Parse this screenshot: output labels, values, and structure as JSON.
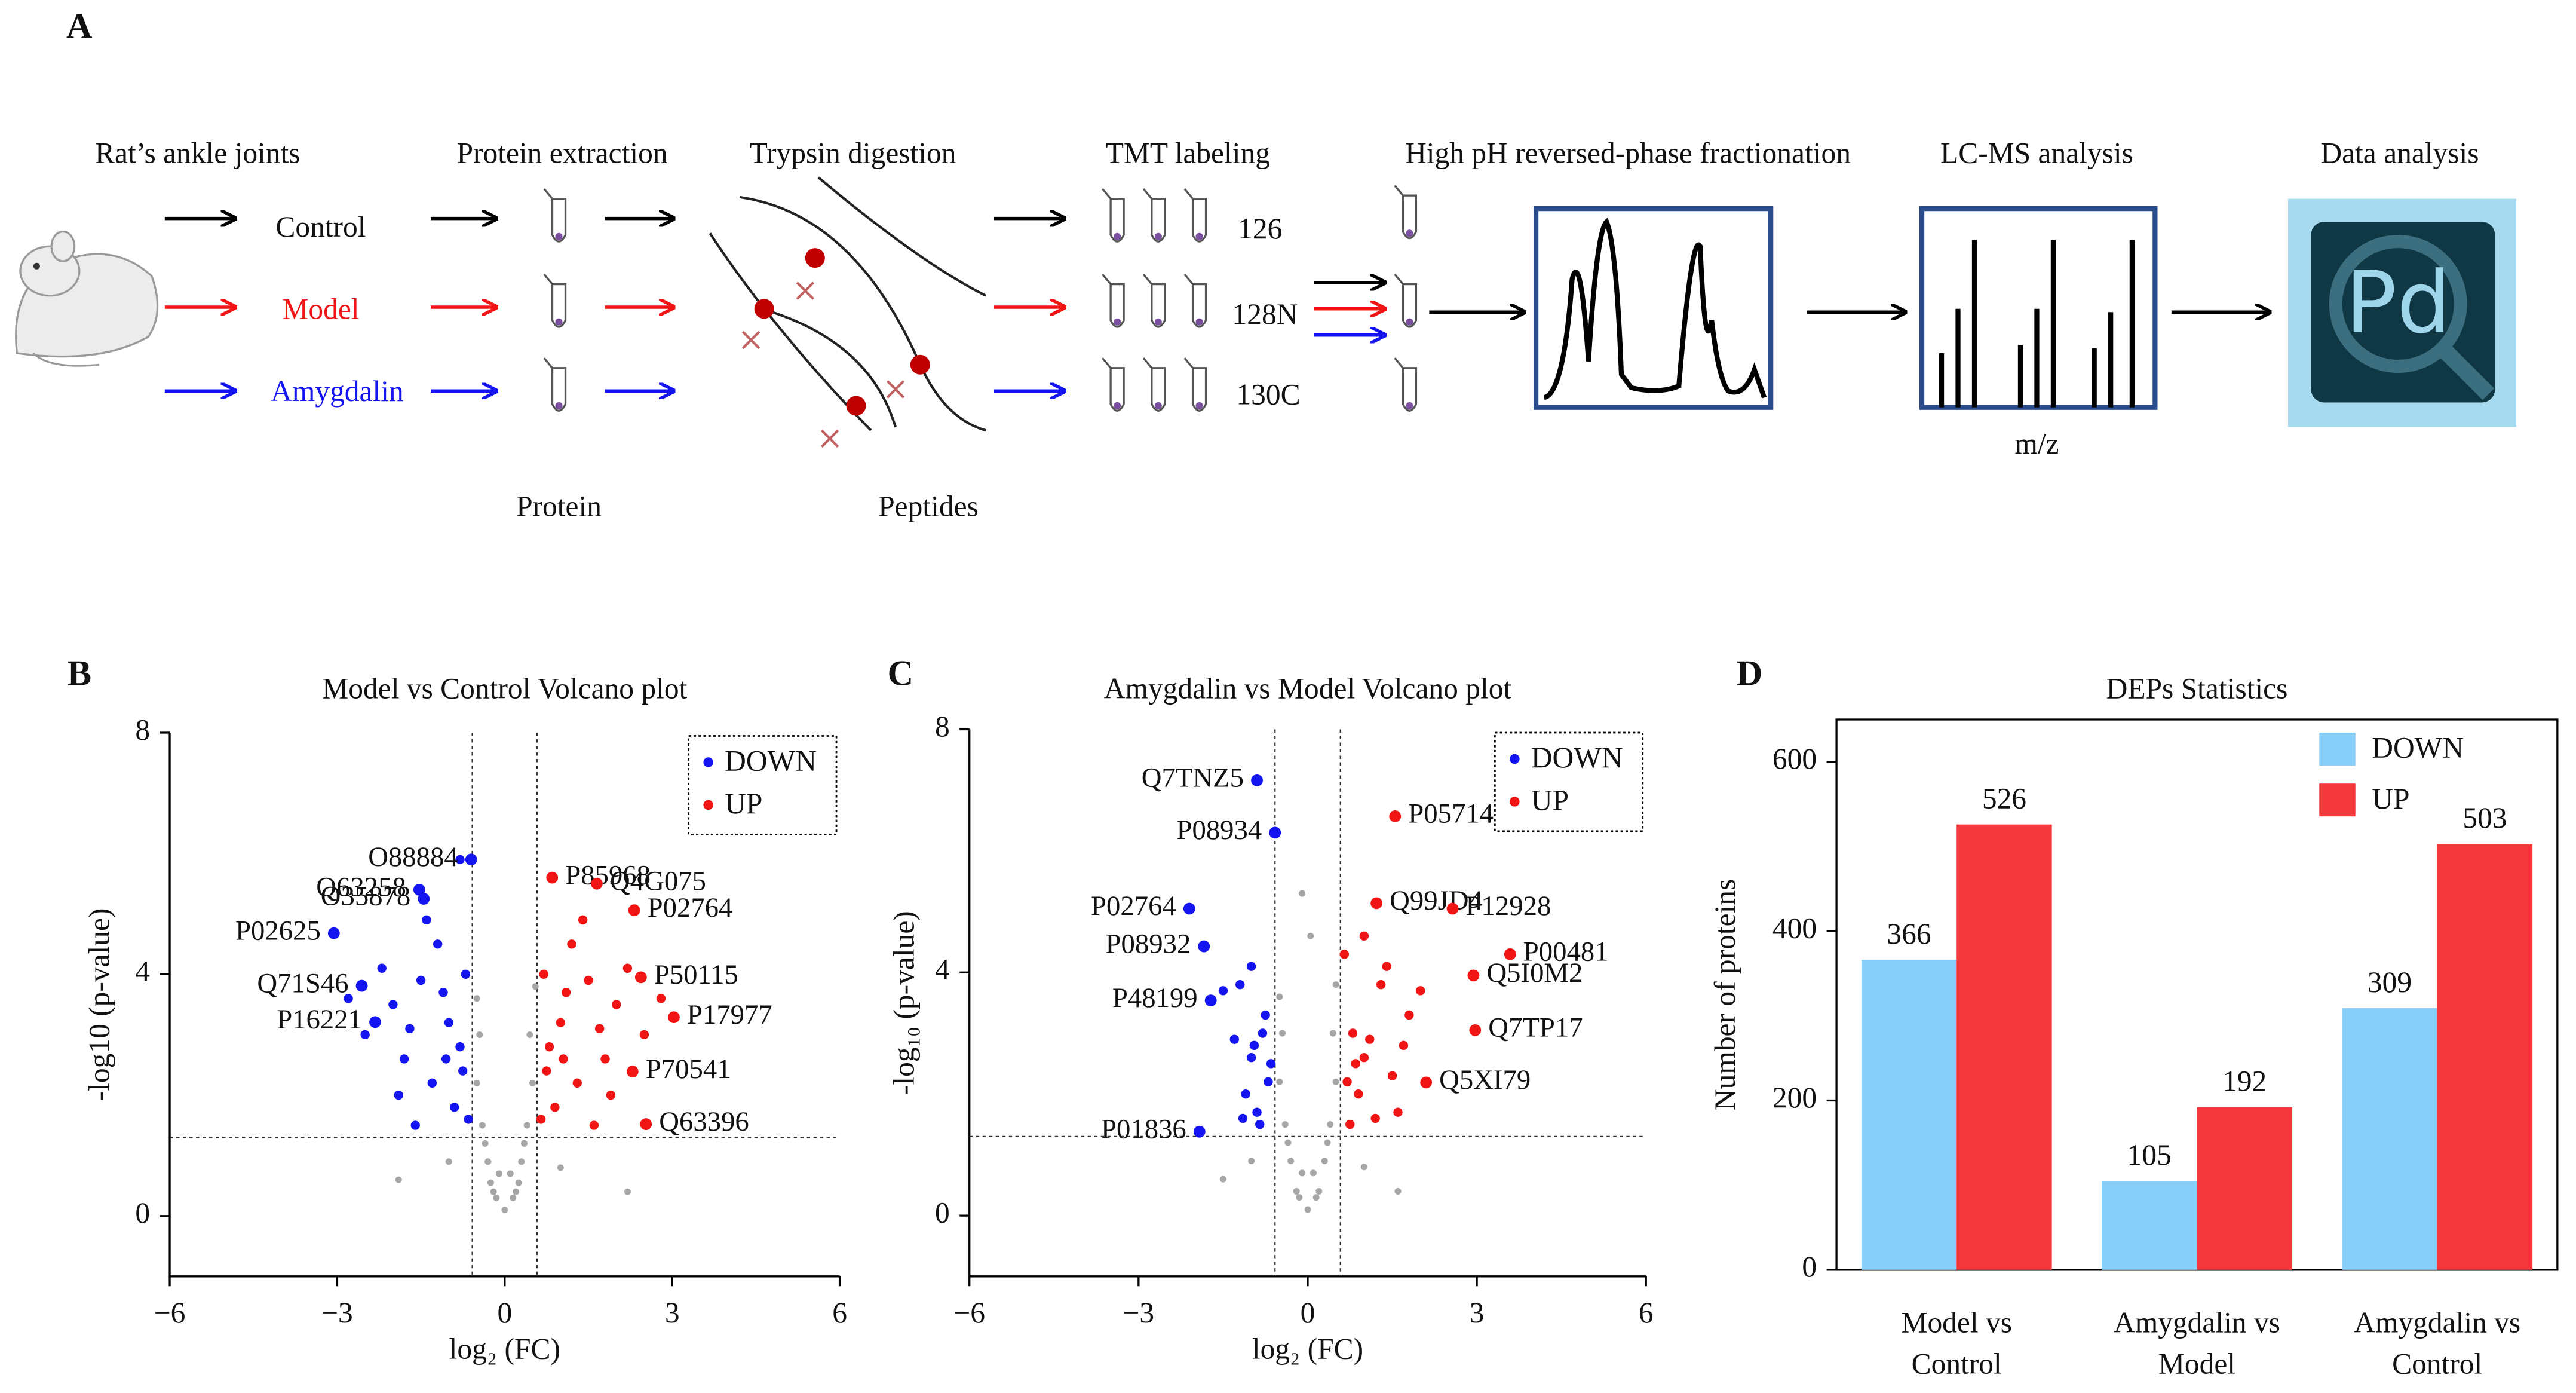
{
  "panel_a": {
    "letter": "A",
    "steps": [
      "Rat’s ankle joints",
      "Protein extraction",
      "Trypsin digestion",
      "TMT labeling",
      "High pH reversed-phase fractionation",
      "LC-MS analysis",
      "Data analysis"
    ],
    "groups": [
      "Control",
      "Model",
      "Amygdalin"
    ],
    "channels": [
      "126",
      "128N",
      "130C"
    ],
    "captions": [
      "Protein",
      "Peptides",
      "m/z"
    ],
    "logo": "Pd"
  },
  "chart_data": [
    {
      "type": "scatter",
      "panel": "B",
      "title": "Model vs Control Volcano plot",
      "x_label": "log₂ (FC)",
      "y_label": "-log10 (p-value)",
      "xlim": [
        -6,
        6
      ],
      "ylim": [
        -1,
        8
      ],
      "xticks": [
        {
          "value": -6,
          "label": "−6"
        },
        {
          "value": -3,
          "label": "−3"
        },
        0,
        3,
        6
      ],
      "yticks": [
        0,
        4,
        8
      ],
      "thresholds": {
        "x": [
          -0.58,
          0.58
        ],
        "y": 1.3
      },
      "legend": "upper right",
      "series": [
        {
          "color": "#a6a6a6",
          "x": [
            0,
            0.2,
            -0.2,
            0.3,
            -0.3,
            0.4,
            -0.4,
            0.5,
            -0.5,
            0.1,
            -0.1,
            0.45,
            -0.45,
            0.55,
            -0.5,
            1.0,
            -1.0,
            2.2,
            -1.9,
            0.35,
            -0.35,
            0.15,
            -0.15,
            0.25,
            -0.25
          ],
          "values": [
            0.1,
            0.4,
            0.4,
            0.9,
            0.9,
            1.5,
            1.5,
            2.2,
            2.2,
            0.7,
            0.7,
            3.0,
            3.0,
            3.8,
            3.6,
            0.8,
            0.9,
            0.4,
            0.6,
            1.2,
            1.2,
            0.3,
            0.3,
            0.55,
            0.55
          ]
        },
        {
          "name": "DOWN",
          "color": "#1414f0",
          "x": [
            -0.8,
            -0.6,
            -1.53,
            -1.45,
            -3.06,
            -2.56,
            -2.32,
            -1.2,
            -1.5,
            -2.0,
            -1.0,
            -0.8,
            -1.8,
            -2.2,
            -1.3,
            -0.9,
            -1.6,
            -2.5,
            -1.1,
            -0.7,
            -1.9,
            -1.4,
            -0.75,
            -2.8,
            -1.7,
            -1.05,
            -0.65
          ],
          "values": [
            5.9,
            5.9,
            5.4,
            5.25,
            4.68,
            3.81,
            3.21,
            4.5,
            3.9,
            3.5,
            3.2,
            2.8,
            2.6,
            4.1,
            2.2,
            1.8,
            1.5,
            3.0,
            3.7,
            4.0,
            2.0,
            4.9,
            2.4,
            3.6,
            3.1,
            2.6,
            1.6
          ],
          "labels": [
            null,
            "O88884",
            "Q63258",
            "O35878",
            "P02625",
            "Q71S46",
            "P16221",
            null,
            null,
            null,
            null,
            null,
            null,
            null,
            null,
            null,
            null,
            null,
            null,
            null,
            null,
            null,
            null,
            null,
            null,
            null,
            null
          ]
        },
        {
          "name": "UP",
          "color": "#f01414",
          "x": [
            0.85,
            1.65,
            2.32,
            2.44,
            3.03,
            2.29,
            2.53,
            1.2,
            1.5,
            2.0,
            1.0,
            0.8,
            1.8,
            2.2,
            1.3,
            0.9,
            1.6,
            2.5,
            1.1,
            0.7,
            1.9,
            1.4,
            0.75,
            2.8,
            1.7,
            1.05,
            0.65
          ],
          "values": [
            5.6,
            5.5,
            5.06,
            3.95,
            3.29,
            2.39,
            1.52,
            4.5,
            3.9,
            3.5,
            3.2,
            2.8,
            2.6,
            4.1,
            2.2,
            1.8,
            1.5,
            3.0,
            3.7,
            4.0,
            2.0,
            4.9,
            2.4,
            3.6,
            3.1,
            2.6,
            1.6
          ],
          "labels": [
            "P85968",
            "Q4G075",
            "P02764",
            "P50115",
            "P17977",
            "P70541",
            "Q63396",
            null,
            null,
            null,
            null,
            null,
            null,
            null,
            null,
            null,
            null,
            null,
            null,
            null,
            null,
            null,
            null,
            null,
            null,
            null,
            null
          ]
        }
      ]
    },
    {
      "type": "scatter",
      "panel": "C",
      "title": "Amygdalin vs Model Volcano plot",
      "x_label": "log₂ (FC)",
      "y_label": "-log₁₀ (p-value)",
      "xlim": [
        -6,
        6
      ],
      "ylim": [
        -1,
        8
      ],
      "xticks": [
        {
          "value": -6,
          "label": "−6"
        },
        {
          "value": -3,
          "label": "−3"
        },
        0,
        3,
        6
      ],
      "yticks": [
        0,
        4,
        8
      ],
      "thresholds": {
        "x": [
          -0.58,
          0.58
        ],
        "y": 1.3
      },
      "legend": "upper right",
      "series": [
        {
          "color": "#a6a6a6",
          "x": [
            0,
            0.2,
            -0.2,
            0.3,
            -0.3,
            0.4,
            -0.4,
            0.5,
            -0.5,
            0.1,
            -0.1,
            0.45,
            -0.45,
            0.5,
            -0.5,
            1.0,
            -1.0,
            1.6,
            -1.5,
            0.35,
            -0.35,
            0.15,
            -0.15,
            -0.1,
            0.05
          ],
          "values": [
            0.1,
            0.4,
            0.4,
            0.9,
            0.9,
            1.5,
            1.5,
            2.2,
            2.2,
            0.7,
            0.7,
            3.0,
            3.0,
            3.8,
            3.6,
            0.8,
            0.9,
            0.4,
            0.6,
            1.2,
            1.2,
            0.3,
            0.3,
            5.3,
            4.6
          ]
        },
        {
          "name": "DOWN",
          "color": "#1414f0",
          "x": [
            -0.9,
            -0.58,
            -2.1,
            -1.84,
            -1.72,
            -1.92,
            -0.8,
            -1.0,
            -1.2,
            -0.7,
            -0.9,
            -1.1,
            -0.75,
            -1.3,
            -0.85,
            -1.0,
            -1.5,
            -0.65,
            -0.95,
            -1.15
          ],
          "values": [
            7.16,
            6.3,
            5.05,
            4.43,
            3.54,
            1.38,
            3.0,
            2.6,
            3.8,
            2.2,
            1.7,
            2.0,
            3.3,
            2.9,
            1.5,
            4.1,
            3.7,
            2.5,
            2.8,
            1.6
          ],
          "labels": [
            "Q7TNZ5",
            "P08934",
            "P02764",
            "P08932",
            "P48199",
            "P01836",
            null,
            null,
            null,
            null,
            null,
            null,
            null,
            null,
            null,
            null,
            null,
            null,
            null,
            null
          ]
        },
        {
          "name": "UP",
          "color": "#f01414",
          "x": [
            1.55,
            1.22,
            2.57,
            3.59,
            2.94,
            2.97,
            2.1,
            0.8,
            1.0,
            1.3,
            0.7,
            1.6,
            0.9,
            1.8,
            1.1,
            0.75,
            1.4,
            2.0,
            0.85,
            1.2,
            1.7,
            0.65,
            1.5,
            1.0
          ],
          "values": [
            6.57,
            5.14,
            5.05,
            4.3,
            3.95,
            3.05,
            2.19,
            3.0,
            2.6,
            3.8,
            2.2,
            1.7,
            2.0,
            3.3,
            2.9,
            1.5,
            4.1,
            3.7,
            2.5,
            1.6,
            2.8,
            4.3,
            2.3,
            4.6
          ],
          "labels": [
            "P05714",
            "Q99JD4",
            "P12928",
            "P00481",
            "Q5I0M2",
            "Q7TP17",
            "Q5XI79",
            null,
            null,
            null,
            null,
            null,
            null,
            null,
            null,
            null,
            null,
            null,
            null,
            null,
            null,
            null,
            null,
            null
          ]
        }
      ]
    },
    {
      "type": "bar",
      "panel": "D",
      "title": "DEPs Statistics",
      "y_label": "Number of proteins",
      "categories": [
        [
          "Model vs",
          "Control"
        ],
        [
          "Amygdalin vs",
          "Model"
        ],
        [
          "Amygdalin vs",
          "Control"
        ]
      ],
      "ylim": [
        0,
        650
      ],
      "yticks": [
        0,
        200,
        400,
        600
      ],
      "legend": "upper right",
      "series": [
        {
          "name": "DOWN",
          "color": "#87cef9",
          "values": [
            366,
            105,
            309
          ]
        },
        {
          "name": "UP",
          "color": "#f5383c",
          "values": [
            526,
            192,
            503
          ]
        }
      ]
    }
  ]
}
